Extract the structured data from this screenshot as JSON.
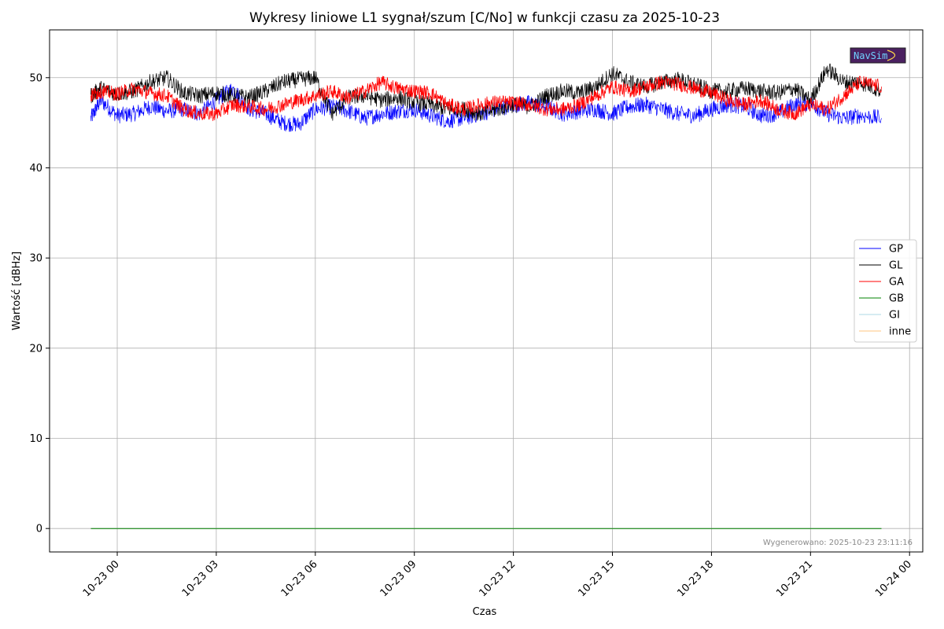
{
  "chart_data": {
    "type": "line",
    "title": "Wykresy liniowe L1 sygnał/szum [C/No] w funkcji czasu za 2025-10-23",
    "xlabel": "Czas",
    "ylabel": "Wartość [dBHz]",
    "ylim": [
      -2.6,
      55.3
    ],
    "y_ticks": [
      0,
      10,
      20,
      30,
      40,
      50
    ],
    "x_range_hours": [
      -2.05,
      24.4
    ],
    "x_ticks": [
      {
        "hour": 0,
        "label": "10-23 00"
      },
      {
        "hour": 3,
        "label": "10-23 03"
      },
      {
        "hour": 6,
        "label": "10-23 06"
      },
      {
        "hour": 9,
        "label": "10-23 09"
      },
      {
        "hour": 12,
        "label": "10-23 12"
      },
      {
        "hour": 15,
        "label": "10-23 15"
      },
      {
        "hour": 18,
        "label": "10-23 18"
      },
      {
        "hour": 21,
        "label": "10-23 21"
      },
      {
        "hour": 24,
        "label": "10-24 00"
      }
    ],
    "grid": true,
    "legend_position": "center-right",
    "footnote": "Wygenerowano: 2025-10-23 23:11:16",
    "logo_text": "NavSim",
    "series": [
      {
        "name": "GP",
        "color": "#0000ff",
        "x": [
          -0.8,
          -0.5,
          0,
          0.5,
          1,
          1.5,
          2,
          2.5,
          3,
          3.5,
          4,
          4.5,
          5,
          5.5,
          6,
          6.5,
          7,
          7.5,
          8,
          8.5,
          9,
          9.5,
          10,
          10.5,
          11,
          11.5,
          12,
          12.5,
          13,
          13.5,
          14,
          14.5,
          15,
          15.5,
          16,
          16.5,
          17,
          17.5,
          18,
          18.5,
          19,
          19.5,
          20,
          20.5,
          21,
          21.5,
          22,
          22.5,
          23.15
        ],
        "y": [
          45.5,
          47.5,
          45.8,
          46.0,
          46.8,
          46.3,
          46.5,
          46.0,
          47.5,
          48.8,
          46.5,
          46.0,
          45.0,
          44.8,
          46.5,
          46.8,
          46.3,
          45.5,
          46.0,
          46.3,
          46.5,
          45.8,
          45.2,
          45.5,
          46.0,
          46.5,
          47.0,
          47.2,
          46.8,
          46.0,
          46.3,
          46.5,
          46.0,
          46.8,
          47.0,
          46.5,
          46.0,
          45.8,
          46.5,
          47.0,
          46.8,
          45.8,
          46.0,
          47.0,
          47.2,
          46.0,
          45.5,
          45.8,
          45.5
        ]
      },
      {
        "name": "GL",
        "color": "#000000",
        "x": [
          -0.8,
          -0.5,
          0,
          0.5,
          1,
          1.5,
          2,
          2.5,
          3,
          3.5,
          4,
          4.5,
          5,
          5.5,
          6,
          6.5,
          7,
          7.5,
          8,
          8.5,
          9,
          9.5,
          10,
          10.5,
          11,
          11.5,
          12,
          12.5,
          13,
          13.5,
          14,
          14.5,
          15,
          15.5,
          16,
          16.5,
          17,
          17.5,
          18,
          18.5,
          19,
          19.5,
          20,
          20.5,
          21,
          21.5,
          22,
          22.5,
          23.15
        ],
        "y": [
          48.0,
          48.8,
          48.2,
          48.5,
          49.5,
          50.0,
          48.3,
          48.0,
          48.3,
          48.0,
          47.8,
          48.5,
          49.5,
          49.8,
          50.0,
          46.0,
          47.8,
          48.0,
          47.5,
          47.8,
          47.3,
          47.0,
          46.5,
          46.5,
          46.0,
          46.5,
          47.0,
          46.8,
          48.0,
          48.5,
          48.3,
          49.0,
          50.5,
          49.5,
          49.0,
          49.5,
          49.8,
          49.2,
          48.5,
          48.5,
          48.8,
          48.5,
          48.3,
          48.8,
          47.5,
          51.0,
          49.5,
          49.5,
          48.5
        ]
      },
      {
        "name": "GA",
        "color": "#ff0000",
        "x": [
          -0.8,
          -0.5,
          0,
          0.5,
          1,
          1.5,
          2,
          2.5,
          3,
          3.5,
          4,
          4.5,
          5,
          5.5,
          6,
          6.5,
          7,
          7.5,
          8,
          8.5,
          9,
          9.5,
          10,
          10.5,
          11,
          11.5,
          12,
          12.5,
          13,
          13.5,
          14,
          14.5,
          15,
          15.5,
          16,
          16.5,
          17,
          17.5,
          18,
          18.5,
          19,
          19.5,
          20,
          20.5,
          21,
          21.5,
          22,
          22.5,
          23.15
        ],
        "y": [
          48.0,
          48.5,
          48.2,
          48.8,
          48.3,
          48.0,
          46.5,
          46.0,
          46.0,
          47.0,
          46.8,
          46.5,
          47.0,
          47.5,
          48.0,
          48.5,
          47.8,
          48.5,
          49.5,
          48.8,
          48.5,
          48.3,
          47.0,
          46.5,
          47.0,
          47.3,
          47.2,
          47.0,
          46.5,
          46.5,
          47.0,
          48.0,
          49.0,
          48.5,
          49.0,
          49.5,
          49.3,
          48.8,
          48.3,
          47.5,
          47.0,
          47.5,
          46.5,
          46.0,
          47.0,
          46.5,
          48.0,
          49.5,
          49.0
        ]
      },
      {
        "name": "GB",
        "color": "#008000",
        "x": [
          -0.8,
          23.15
        ],
        "y": [
          0,
          0
        ]
      },
      {
        "name": "GI",
        "color": "#add8e6",
        "x": [
          -0.8,
          23.15
        ],
        "y": [
          0,
          0
        ]
      },
      {
        "name": "inne",
        "color": "#ffc67f",
        "x": [
          -0.8,
          23.15
        ],
        "y": [
          0,
          0
        ]
      }
    ]
  }
}
